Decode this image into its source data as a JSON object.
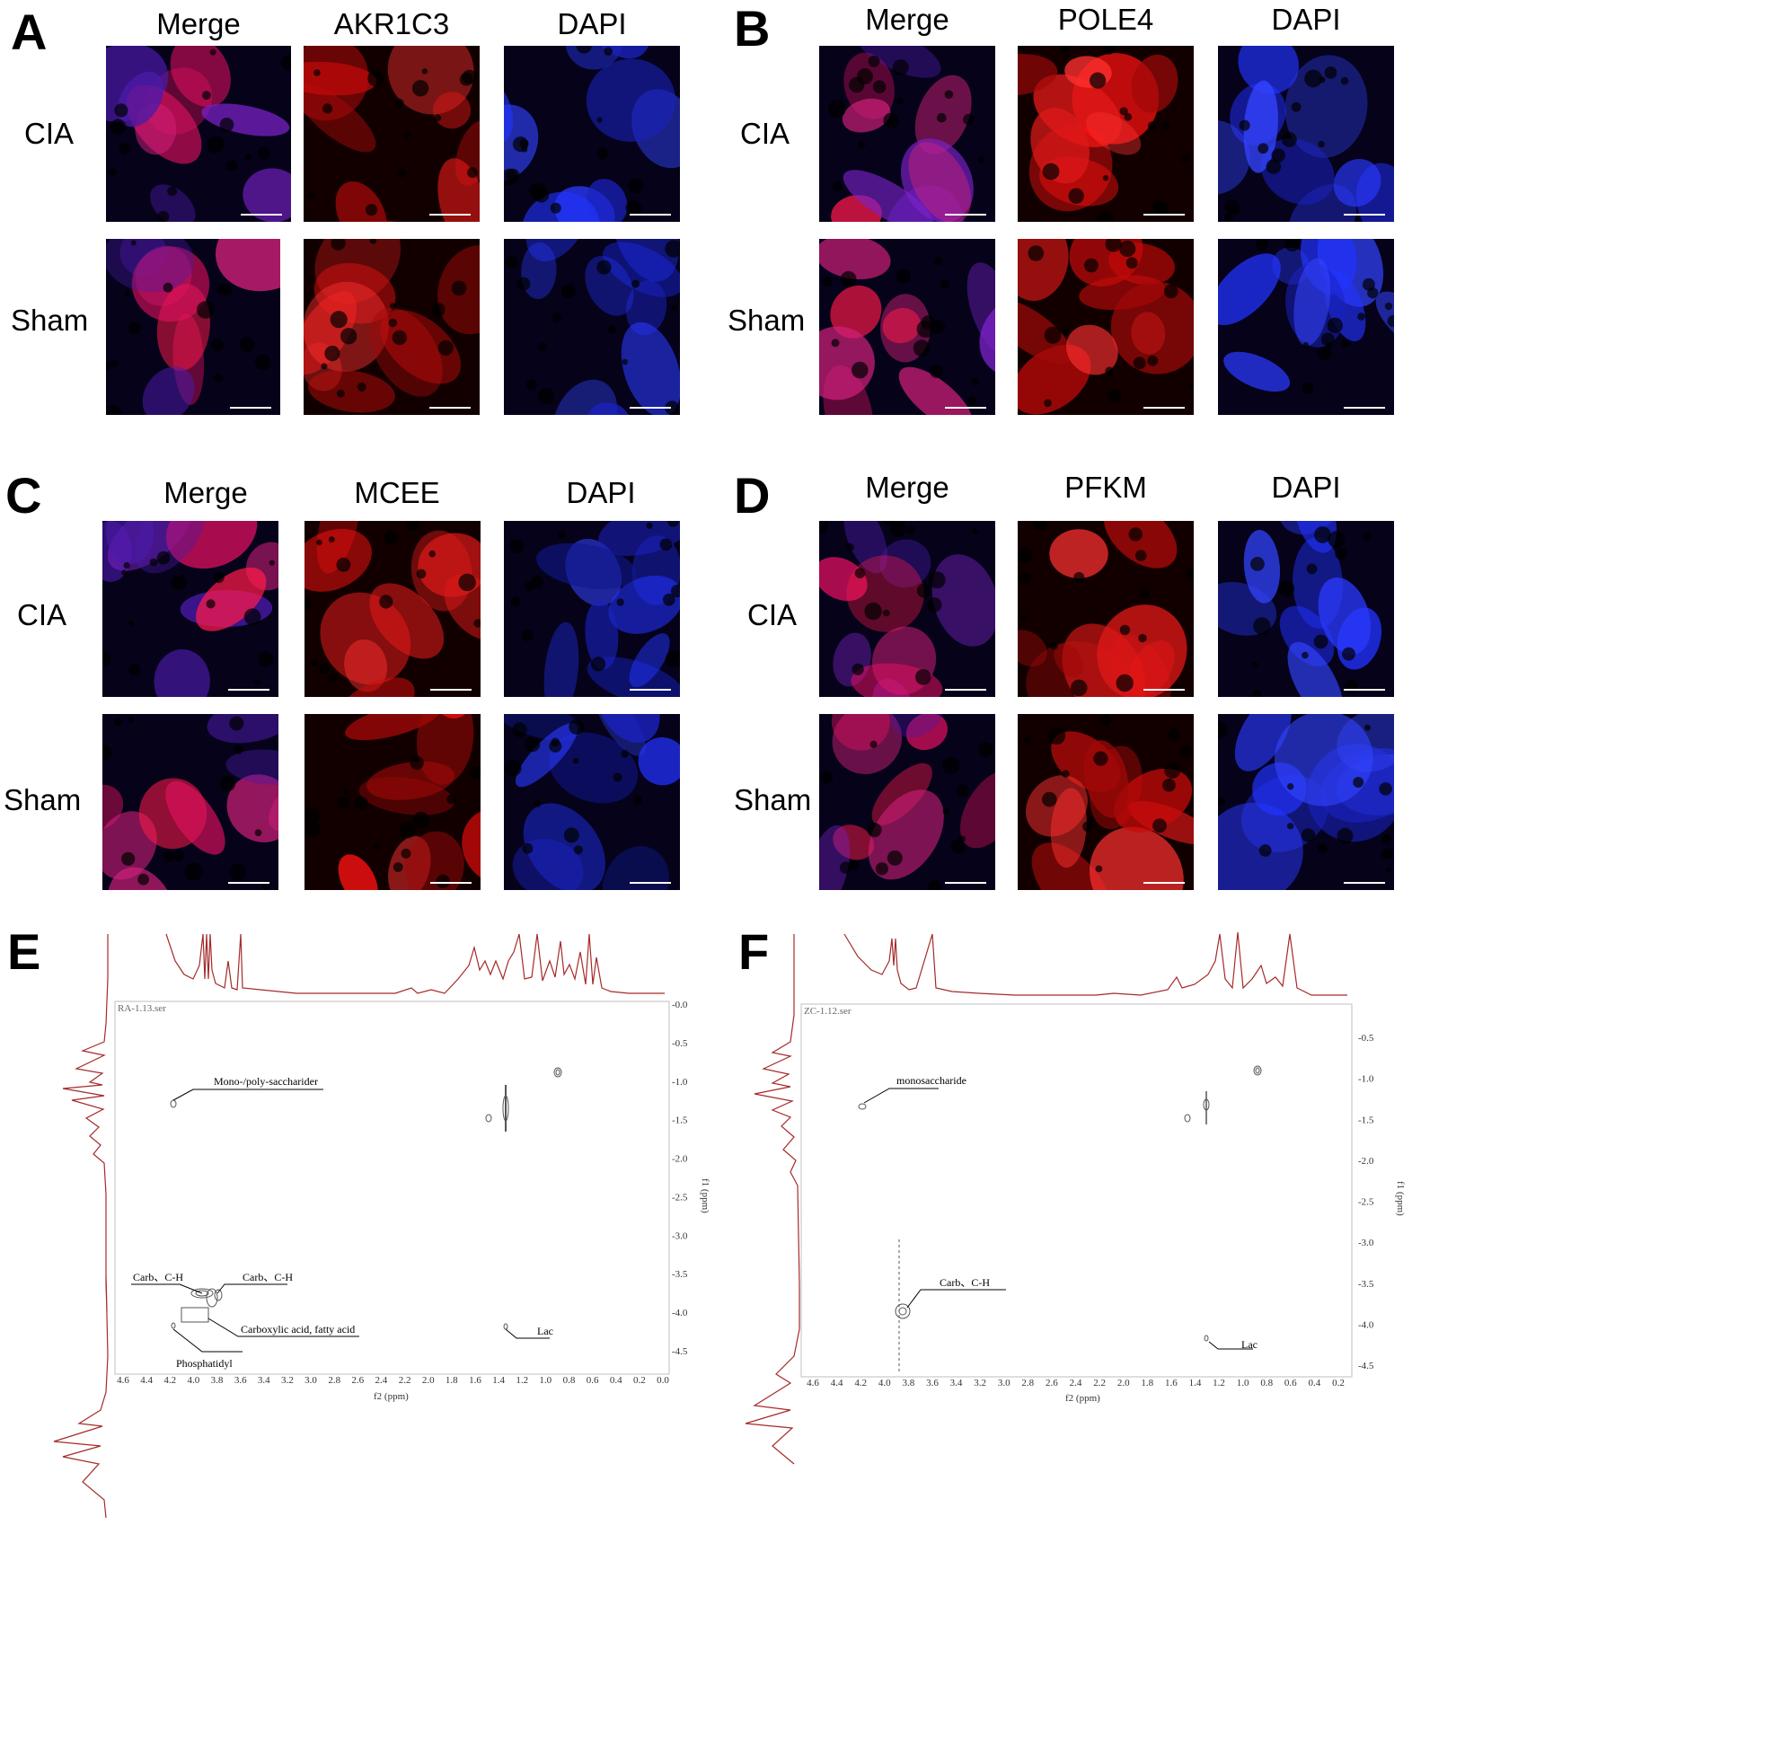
{
  "panels": {
    "A": {
      "letter": "A",
      "columns": [
        "Merge",
        "AKR1C3",
        "DAPI"
      ],
      "rows": [
        "CIA",
        "Sham"
      ]
    },
    "B": {
      "letter": "B",
      "columns": [
        "Merge",
        "POLE4",
        "DAPI"
      ],
      "rows": [
        "CIA",
        "Sham"
      ]
    },
    "C": {
      "letter": "C",
      "columns": [
        "Merge",
        "MCEE",
        "DAPI"
      ],
      "rows": [
        "CIA",
        "Sham"
      ]
    },
    "D": {
      "letter": "D",
      "columns": [
        "Merge",
        "PFKM",
        "DAPI"
      ],
      "rows": [
        "CIA",
        "Sham"
      ]
    }
  },
  "nmr": {
    "E": {
      "letter": "E",
      "file_label": "RA-1.13.ser",
      "x_axis_label": "f2 (ppm)",
      "y_axis_label": "f1 (ppm)",
      "x_ticks": [
        "4.6",
        "4.4",
        "4.2",
        "4.0",
        "3.8",
        "3.6",
        "3.4",
        "3.2",
        "3.0",
        "2.8",
        "2.6",
        "2.4",
        "2.2",
        "2.0",
        "1.8",
        "1.6",
        "1.4",
        "1.2",
        "1.0",
        "0.8",
        "0.6",
        "0.4",
        "0.2",
        "0.0"
      ],
      "y_ticks": [
        "0.0",
        "0.5",
        "1.0",
        "1.5",
        "2.0",
        "2.5",
        "3.0",
        "3.5",
        "4.0",
        "4.5"
      ],
      "annotations": {
        "sugar": "Mono-/poly-saccharider",
        "carb_left": "Carb、C-H",
        "carb_right": "Carb、C-H",
        "carboxylic": "Carboxylic acid, fatty acid",
        "phosphatidyl": "Phosphatidyl",
        "lac": "Lac"
      }
    },
    "F": {
      "letter": "F",
      "file_label": "ZC-1.12.ser",
      "x_axis_label": "f2 (ppm)",
      "y_axis_label": "f1 (ppm)",
      "x_ticks": [
        "4.6",
        "4.4",
        "4.2",
        "4.0",
        "3.8",
        "3.6",
        "3.4",
        "3.2",
        "3.0",
        "2.8",
        "2.6",
        "2.4",
        "2.2",
        "2.0",
        "1.8",
        "1.6",
        "1.4",
        "1.2",
        "1.0",
        "0.8",
        "0.6",
        "0.4",
        "0.2"
      ],
      "y_ticks": [
        "0.5",
        "1.0",
        "1.5",
        "2.0",
        "2.5",
        "3.0",
        "3.5",
        "4.0",
        "4.5"
      ],
      "annotations": {
        "sugar": "monosaccharide",
        "carb": "Carb、C-H",
        "lac": "Lac"
      }
    }
  },
  "colors": {
    "merge": "#c2185b",
    "red_channel": "#e0101a",
    "dapi": "#1e2cff",
    "spectrum": "#a52a2a"
  }
}
